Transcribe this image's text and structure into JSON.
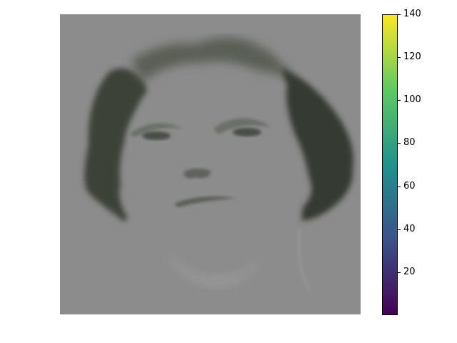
{
  "image": {
    "subject": "grayscale portrait",
    "background_color": "#8c8c8c"
  },
  "colorbar": {
    "colormap": "viridis",
    "range": [
      0,
      140
    ],
    "ticks": [
      "20",
      "40",
      "60",
      "80",
      "100",
      "120",
      "140"
    ],
    "stops": [
      "#440154",
      "#3b528b",
      "#21918c",
      "#5ec962",
      "#fde725"
    ]
  }
}
